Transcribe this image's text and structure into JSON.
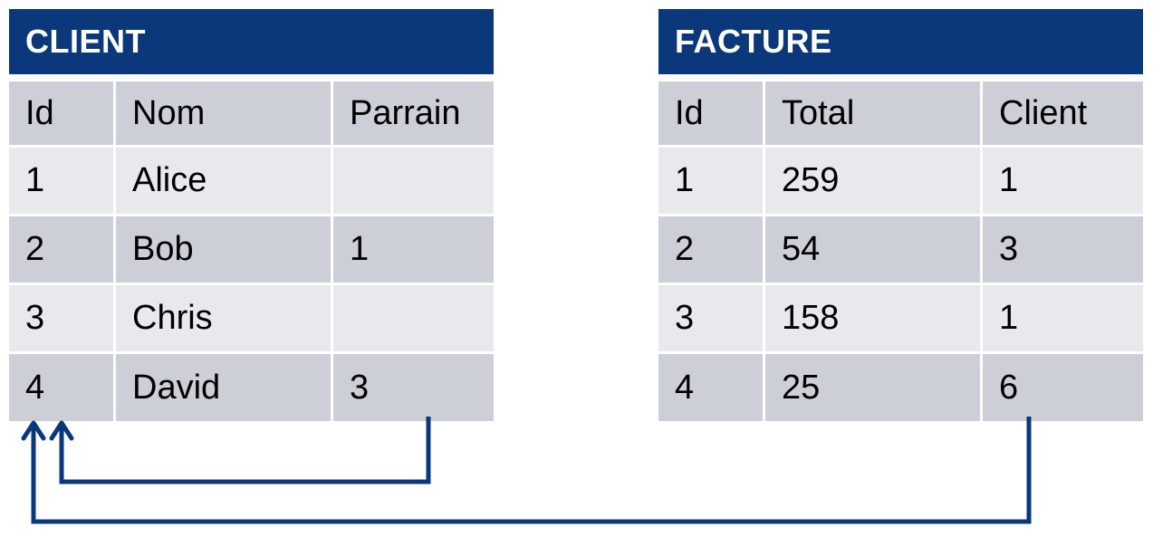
{
  "tables": {
    "client": {
      "title": "CLIENT",
      "columns": [
        "Id",
        "Nom",
        "Parrain"
      ],
      "rows": [
        [
          "1",
          "Alice",
          ""
        ],
        [
          "2",
          "Bob",
          "1"
        ],
        [
          "3",
          "Chris",
          ""
        ],
        [
          "4",
          "David",
          "3"
        ]
      ]
    },
    "facture": {
      "title": "FACTURE",
      "columns": [
        "Id",
        "Total",
        "Client"
      ],
      "rows": [
        [
          "1",
          "259",
          "1"
        ],
        [
          "2",
          "54",
          "3"
        ],
        [
          "3",
          "158",
          "1"
        ],
        [
          "4",
          "25",
          "6"
        ]
      ]
    }
  },
  "links": [
    {
      "from": "client.parrain",
      "to": "client.id"
    },
    {
      "from": "facture.client",
      "to": "client.id"
    }
  ],
  "colors": {
    "header": "#0a387b",
    "arrow": "#0a387b",
    "row_dark": "#cdcfd8",
    "row_light": "#e8e9ed"
  }
}
